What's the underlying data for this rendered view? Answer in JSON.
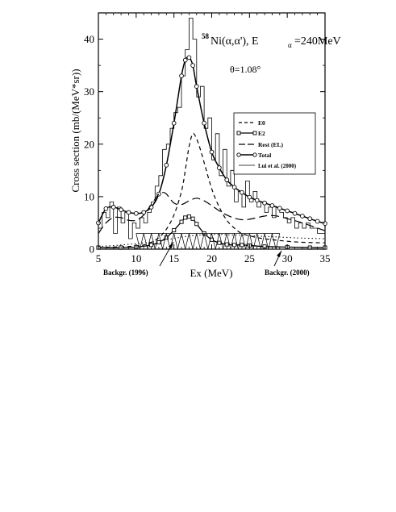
{
  "chart_data": {
    "type": "line",
    "title_main": "Ni(α,α'), E",
    "title_sup": "58",
    "title_sub": "α",
    "title_tail": "=240MeV",
    "angle_label": "θ=1.08°",
    "xlabel": "Ex (MeV)",
    "ylabel": "Cross section (mb/(MeV*sr))",
    "xlim": [
      5,
      35
    ],
    "ylim": [
      0,
      45
    ],
    "x_ticks": [
      5,
      10,
      15,
      20,
      25,
      30,
      35
    ],
    "y_ticks": [
      0,
      10,
      20,
      30,
      40
    ],
    "x_tick_labels": [
      "5",
      "10",
      "15",
      "20",
      "25",
      "30",
      "35"
    ],
    "y_tick_labels": [
      "0",
      "10",
      "20",
      "30",
      "40"
    ],
    "annotations": [
      {
        "text": "Backgr. (1996)",
        "x": 13.5,
        "y": 1.2
      },
      {
        "text": "Backgr. (2000)",
        "x": 28.0,
        "y": 0.5
      }
    ],
    "legend": [
      {
        "label": "E0",
        "style": "dash"
      },
      {
        "label": "E2",
        "style": "line-square"
      },
      {
        "label": "Rest (EL)",
        "style": "longdash"
      },
      {
        "label": "Total",
        "style": "line-circle"
      },
      {
        "label": "Lui et al. (2000)",
        "style": "thin"
      }
    ],
    "series": [
      {
        "name": "Lui et al. (2000)",
        "style": "histogram",
        "x": [
          5.0,
          5.5,
          6.0,
          6.5,
          7.0,
          7.5,
          8.0,
          8.5,
          9.0,
          9.5,
          10.0,
          10.5,
          11.0,
          11.5,
          12.0,
          12.5,
          13.0,
          13.5,
          14.0,
          14.5,
          15.0,
          15.5,
          16.0,
          16.5,
          17.0,
          17.5,
          18.0,
          18.5,
          19.0,
          19.5,
          20.0,
          20.5,
          21.0,
          21.5,
          22.0,
          22.5,
          23.0,
          23.5,
          24.0,
          24.5,
          25.0,
          25.5,
          26.0,
          26.5,
          27.0,
          27.5,
          28.0,
          28.5,
          29.0,
          29.5,
          30.0,
          30.5,
          31.0,
          31.5,
          32.0,
          32.5,
          33.0,
          33.5,
          34.0,
          34.5,
          35.0
        ],
        "values": [
          4,
          7,
          6,
          9,
          3,
          8,
          5,
          7,
          2,
          5,
          4,
          6,
          5,
          7,
          9,
          12,
          14,
          19,
          20,
          23,
          26,
          27,
          33,
          38,
          44,
          40,
          29,
          31,
          23,
          25,
          17,
          22,
          14,
          19,
          12,
          15,
          9,
          11,
          8,
          13,
          9,
          11,
          8,
          9,
          7,
          8,
          6,
          8,
          7,
          6,
          5,
          6,
          4,
          5,
          4,
          5,
          4,
          4,
          3,
          3,
          3
        ]
      },
      {
        "name": "Total",
        "style": "line-circle",
        "x": [
          5,
          6,
          7,
          8,
          9,
          10,
          11,
          12,
          13,
          14,
          15,
          16,
          16.5,
          17,
          17.5,
          18,
          19,
          20,
          21,
          22,
          23,
          24,
          25,
          26,
          27,
          28,
          29,
          30,
          31,
          32,
          33,
          34,
          35
        ],
        "values": [
          5.0,
          7.7,
          8.0,
          7.5,
          7.0,
          6.8,
          7.0,
          8.0,
          10.5,
          16,
          24,
          33,
          36,
          36.5,
          35,
          31,
          24,
          18.5,
          15.5,
          13.2,
          11.8,
          10.8,
          9.9,
          9.3,
          8.8,
          8.3,
          7.8,
          7.3,
          6.8,
          6.3,
          5.8,
          5.3,
          4.9
        ]
      },
      {
        "name": "E0",
        "style": "dash",
        "x": [
          5,
          7,
          9,
          11,
          12,
          13,
          14,
          15,
          16,
          16.5,
          17,
          17.5,
          18,
          18.5,
          19,
          20,
          21,
          22,
          23,
          24,
          26,
          28,
          30,
          32,
          35
        ],
        "values": [
          0.3,
          0.4,
          0.5,
          0.8,
          1.3,
          2.2,
          3.8,
          6.5,
          11,
          15,
          19.5,
          22,
          21,
          19,
          16.5,
          11.5,
          8,
          5.5,
          4,
          3,
          2.2,
          1.8,
          1.5,
          1.3,
          1.2
        ]
      },
      {
        "name": "Rest (EL)",
        "style": "longdash",
        "x": [
          5,
          6,
          7,
          8,
          9,
          10,
          11,
          12,
          13,
          13.5,
          14,
          15,
          16,
          17,
          18,
          19,
          20,
          21,
          22,
          23,
          24,
          25,
          26,
          27,
          28,
          29,
          30,
          32,
          35
        ],
        "values": [
          3,
          5,
          6,
          6,
          5.5,
          5.5,
          6.5,
          8.5,
          10.5,
          10.8,
          10.5,
          8.8,
          8.5,
          9.2,
          9.7,
          9.2,
          8.3,
          7.3,
          6.5,
          5.9,
          5.6,
          5.7,
          6,
          6.3,
          6.4,
          6.2,
          5.8,
          5,
          3.5
        ]
      },
      {
        "name": "E2",
        "style": "line-square",
        "x": [
          5,
          8,
          10,
          12,
          13,
          14,
          15,
          16,
          16.5,
          17,
          17.5,
          18,
          19,
          20,
          21,
          22,
          23,
          24,
          25,
          27,
          30,
          33,
          35
        ],
        "values": [
          0.3,
          0.3,
          0.4,
          0.8,
          1.3,
          2.2,
          3.6,
          5.2,
          6.0,
          6.2,
          5.8,
          4.8,
          3.0,
          1.8,
          1.2,
          0.9,
          0.8,
          0.8,
          0.7,
          0.5,
          0.4,
          0.3,
          0.3
        ]
      },
      {
        "name": "Backgr. (1996)",
        "style": "zigzag",
        "x": [
          10,
          10.5,
          11,
          11.5,
          12,
          12.5,
          13,
          13.5,
          14,
          14.5,
          15,
          15.5,
          16,
          16.5,
          17,
          17.5,
          18,
          18.5,
          19,
          19.5,
          20,
          20.5,
          21,
          21.5,
          22,
          22.5,
          23,
          23.5,
          24,
          24.5,
          25,
          25.5,
          26,
          26.5,
          27,
          27.5,
          28,
          28.5,
          29
        ],
        "values": [
          3,
          0,
          3,
          0,
          3,
          0,
          3,
          0,
          3,
          0,
          3,
          0,
          3,
          0,
          3,
          0,
          3,
          0,
          3,
          0,
          3,
          0,
          3,
          0,
          3,
          0,
          3,
          0,
          3,
          0,
          3,
          0,
          3,
          0,
          3,
          0,
          3,
          0,
          3
        ]
      },
      {
        "name": "Backgr. (2000)",
        "style": "dot",
        "x": [
          5,
          8,
          11,
          14,
          17,
          20,
          23,
          26,
          29,
          32,
          35
        ],
        "values": [
          0.5,
          0.8,
          1.2,
          1.8,
          2.5,
          2.8,
          2.7,
          2.5,
          2.3,
          2.1,
          2
        ]
      }
    ]
  }
}
